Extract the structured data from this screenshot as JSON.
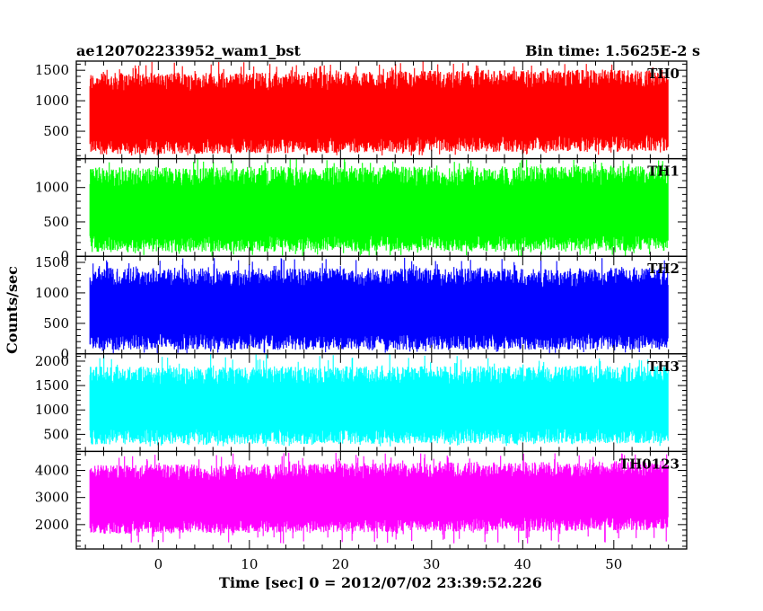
{
  "chart_data": {
    "type": "line",
    "title_left": "ae120702233952_wam1_bst",
    "title_right": "Bin time: 1.5625E-2 s",
    "xlabel": "Time [sec] 0 = 2012/07/02 23:39:52.226",
    "ylabel": "Counts/sec",
    "xlim": [
      -9,
      58
    ],
    "x_range": [
      -7.5,
      56
    ],
    "x_ticks": [
      0,
      10,
      20,
      30,
      40,
      50
    ],
    "panels": [
      {
        "name": "TH0",
        "color": "#ff0000",
        "ylim": [
          50,
          1650
        ],
        "y_ticks": [
          500,
          1000,
          1500
        ],
        "mean": 720,
        "low": 250,
        "high": 1300,
        "max": 1650,
        "min": 100,
        "trend": 60
      },
      {
        "name": "TH1",
        "color": "#00ff00",
        "ylim": [
          0,
          1420
        ],
        "y_ticks": [
          0,
          500,
          1000
        ],
        "mean": 620,
        "low": 180,
        "high": 1150,
        "max": 1420,
        "min": 0,
        "trend": 20
      },
      {
        "name": "TH2",
        "color": "#0000ff",
        "ylim": [
          0,
          1600
        ],
        "y_ticks": [
          0,
          500,
          1000,
          1500
        ],
        "mean": 700,
        "low": 200,
        "high": 1250,
        "max": 1600,
        "min": 0,
        "trend": 0
      },
      {
        "name": "TH3",
        "color": "#00ffff",
        "ylim": [
          150,
          2150
        ],
        "y_ticks": [
          500,
          1000,
          1500,
          2000
        ],
        "mean": 1020,
        "low": 450,
        "high": 1700,
        "max": 2150,
        "min": 250,
        "trend": 20
      },
      {
        "name": "TH0123",
        "color": "#ff00ff",
        "ylim": [
          1100,
          4700
        ],
        "y_ticks": [
          2000,
          3000,
          4000
        ],
        "mean": 2850,
        "low": 1900,
        "high": 3900,
        "max": 4700,
        "min": 1300,
        "trend": 150
      }
    ]
  }
}
